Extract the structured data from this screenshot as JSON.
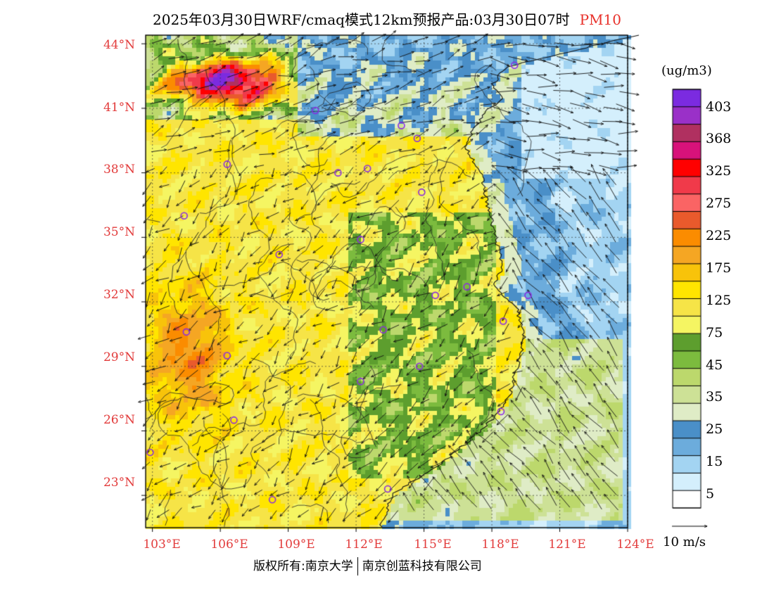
{
  "title": {
    "text": "2025年03月30日WRF/cmaq模式12km预报产品:03月30日07时",
    "variable": "PM10",
    "variable_color": "#e8312a"
  },
  "map": {
    "lat_labels": [
      "44°N",
      "41°N",
      "38°N",
      "35°N",
      "32°N",
      "29°N",
      "26°N",
      "23°N"
    ],
    "lon_labels": [
      "103°E",
      "106°E",
      "109°E",
      "112°E",
      "115°E",
      "118°E",
      "121°E",
      "124°E"
    ],
    "extent": {
      "lon": [
        102.7,
        124
      ],
      "lat": [
        21.5,
        44.4
      ]
    },
    "label_color": "#e23b3b"
  },
  "legend": {
    "units": "(ug/m3)",
    "levels": [
      "403",
      "368",
      "325",
      "275",
      "225",
      "175",
      "125",
      "75",
      "45",
      "35",
      "25",
      "15",
      "5"
    ],
    "colors": [
      "#7b2be0",
      "#9a30c8",
      "#b03060",
      "#d8127a",
      "#ff0000",
      "#f03a4a",
      "#fa6464",
      "#e95a2c",
      "#fb8c00",
      "#f5a623",
      "#f8c30a",
      "#ffe500",
      "#f6e447",
      "#f5f562",
      "#5d9e2e",
      "#7cbb3e",
      "#bcd86c",
      "#cde196",
      "#dfecc6",
      "#4a8fc8",
      "#6cacdc",
      "#a3d4f2",
      "#d4effc",
      "#ffffff"
    ]
  },
  "wind": {
    "label": "10 m/s"
  },
  "stations": [
    {
      "lon": 119.0,
      "lat": 43.0
    },
    {
      "lon": 110.2,
      "lat": 40.9
    },
    {
      "lon": 114.0,
      "lat": 40.2
    },
    {
      "lon": 114.7,
      "lat": 39.6
    },
    {
      "lon": 106.3,
      "lat": 38.4
    },
    {
      "lon": 111.2,
      "lat": 38.0
    },
    {
      "lon": 112.5,
      "lat": 38.2
    },
    {
      "lon": 114.9,
      "lat": 37.1
    },
    {
      "lon": 104.4,
      "lat": 36.0
    },
    {
      "lon": 112.2,
      "lat": 34.9
    },
    {
      "lon": 108.6,
      "lat": 34.2
    },
    {
      "lon": 116.9,
      "lat": 32.7
    },
    {
      "lon": 115.5,
      "lat": 32.3
    },
    {
      "lon": 119.6,
      "lat": 32.3
    },
    {
      "lon": 118.5,
      "lat": 31.1
    },
    {
      "lon": 104.5,
      "lat": 30.6
    },
    {
      "lon": 113.2,
      "lat": 30.7
    },
    {
      "lon": 106.3,
      "lat": 29.5
    },
    {
      "lon": 114.8,
      "lat": 29.0
    },
    {
      "lon": 112.2,
      "lat": 28.3
    },
    {
      "lon": 118.4,
      "lat": 26.9
    },
    {
      "lon": 106.6,
      "lat": 26.5
    },
    {
      "lon": 102.9,
      "lat": 25.0
    },
    {
      "lon": 113.4,
      "lat": 23.3
    },
    {
      "lon": 108.3,
      "lat": 22.8
    }
  ],
  "footer": {
    "left": "版权所有:南京大学",
    "right": "南京创蓝科技有限公司"
  }
}
